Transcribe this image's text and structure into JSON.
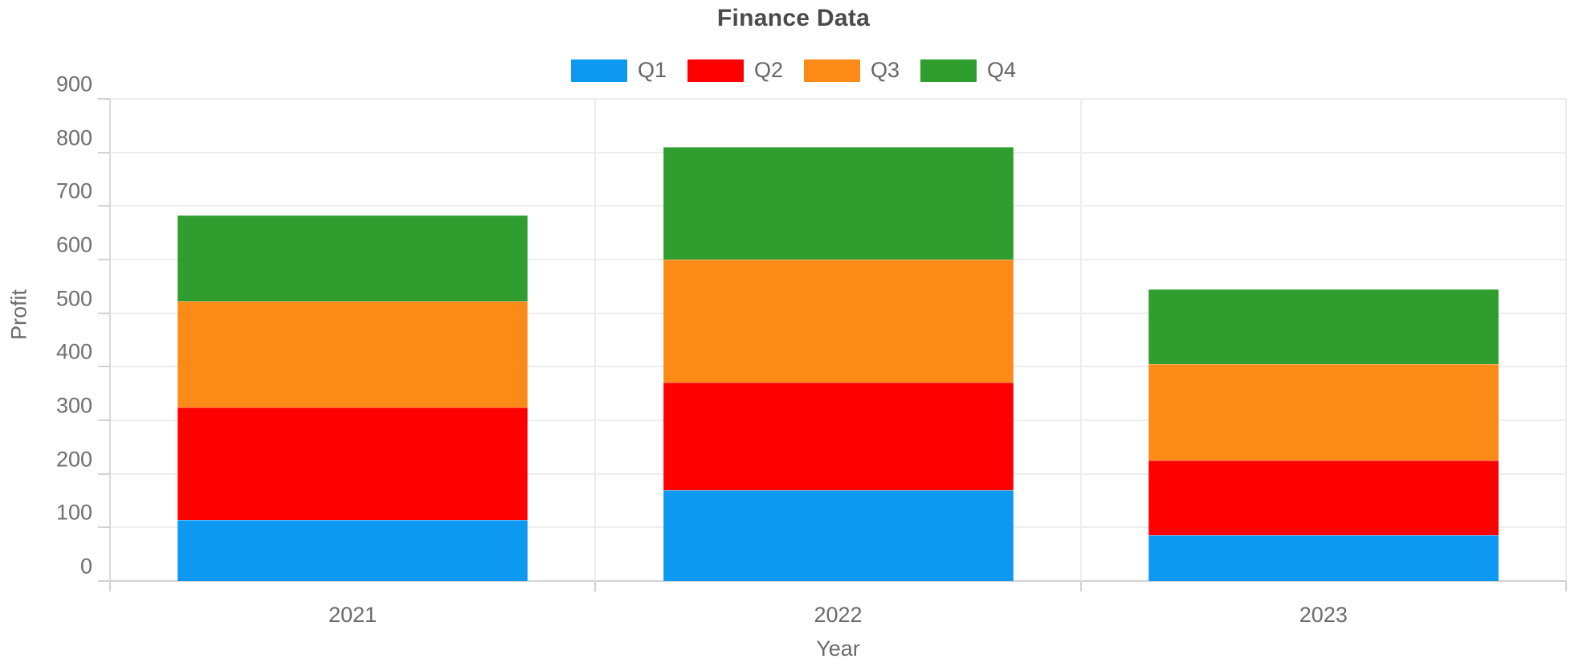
{
  "chart_data": {
    "type": "bar",
    "stacked": true,
    "title": "Finance Data",
    "xlabel": "Year",
    "ylabel": "Profit",
    "categories": [
      "2021",
      "2022",
      "2023"
    ],
    "series": [
      {
        "name": "Q1",
        "color": "#0d99f2",
        "values": [
          114,
          170,
          85
        ]
      },
      {
        "name": "Q2",
        "color": "#fe0000",
        "values": [
          210,
          200,
          140
        ]
      },
      {
        "name": "Q3",
        "color": "#fb8a16",
        "values": [
          198,
          230,
          180
        ]
      },
      {
        "name": "Q4",
        "color": "#2f9e2f",
        "values": [
          161,
          210,
          140
        ]
      }
    ],
    "stack_totals": [
      683,
      810,
      545
    ],
    "ylim": [
      0,
      900
    ],
    "y_ticks": [
      0,
      100,
      200,
      300,
      400,
      500,
      600,
      700,
      800,
      900
    ],
    "legend_position": "top",
    "grid": true,
    "colors": {
      "title_text": "#4a4a4a",
      "label_text": "#6b6b6b",
      "gridline": "#ededed",
      "axis_line": "#d2d2d2",
      "background": "#ffffff"
    }
  }
}
